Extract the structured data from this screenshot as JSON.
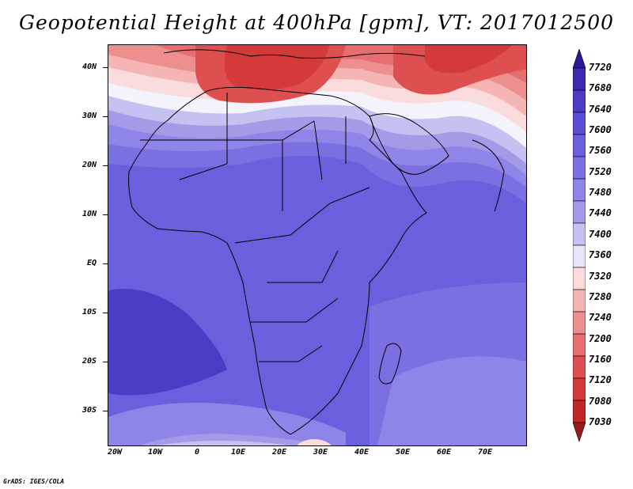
{
  "title": "Geopotential Height at 400hPa [gpm], VT: 2017012500",
  "credit": "GrADS: IGES/COLA",
  "lat_labels": [
    "40N",
    "30N",
    "20N",
    "10N",
    "EQ",
    "10S",
    "20S",
    "30S"
  ],
  "lon_labels": [
    "20W",
    "10W",
    "0",
    "10E",
    "20E",
    "30E",
    "40E",
    "50E",
    "60E",
    "70E"
  ],
  "colorbar": {
    "levels": [
      "7720",
      "7680",
      "7640",
      "7600",
      "7560",
      "7520",
      "7480",
      "7440",
      "7400",
      "7360",
      "7320",
      "7280",
      "7240",
      "7200",
      "7160",
      "7120",
      "7080",
      "7030"
    ],
    "colors": [
      "#2a1a9a",
      "#3a2bb0",
      "#4a3cc4",
      "#5a4ed4",
      "#6a5fdc",
      "#7a70e2",
      "#8d85e8",
      "#a29be8",
      "#c4c2f0",
      "#e8e6f8",
      "#fbdcdc",
      "#f5b5b5",
      "#ee8f8f",
      "#e76e6e",
      "#de5050",
      "#d43a3a",
      "#c02828",
      "#9a1a1a"
    ]
  },
  "field_colors": {
    "deep_blue": "#4a3ccb",
    "mid_blue": "#6559d8",
    "light_blue": "#8b83e5",
    "pale": "#d8d6f4",
    "pink": "#f7c8c8",
    "red": "#e06060",
    "dark_red": "#c83434"
  }
}
